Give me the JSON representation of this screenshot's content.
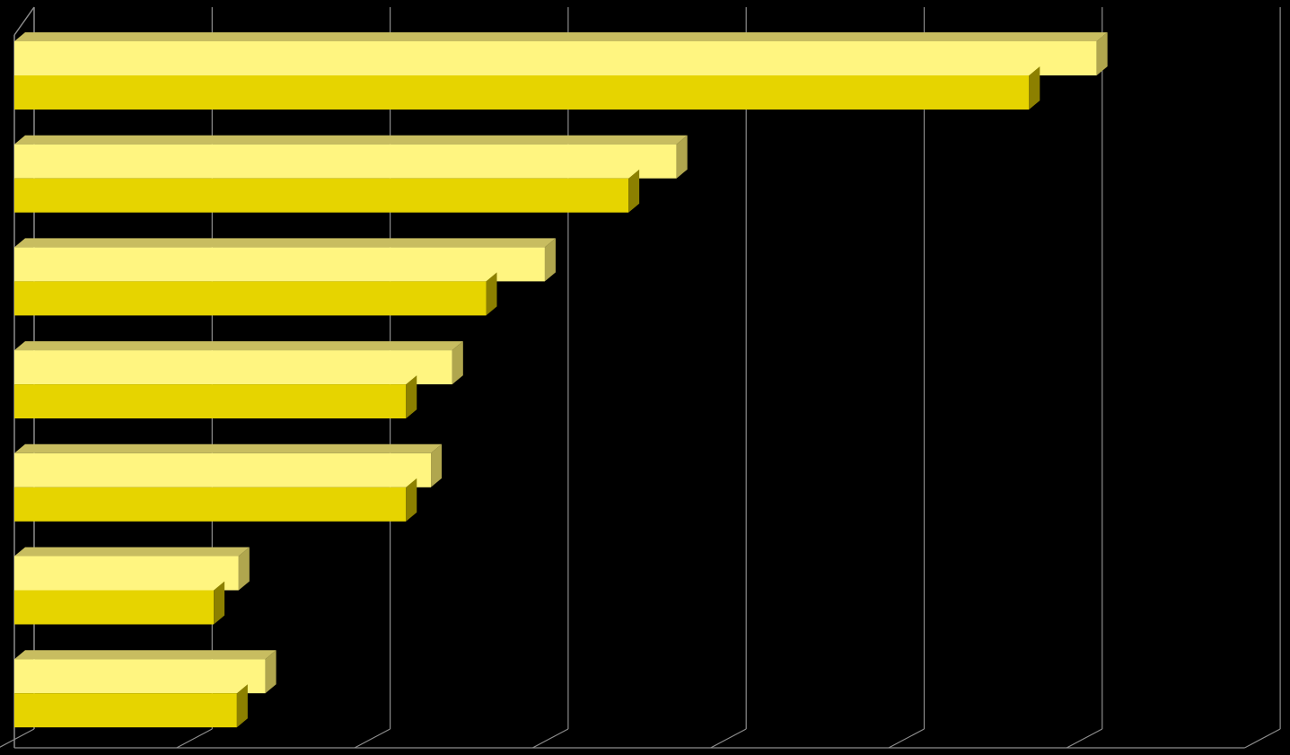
{
  "chart_data": {
    "type": "bar",
    "orientation": "horizontal",
    "style": "3d",
    "grid": true,
    "xlim": [
      0,
      7
    ],
    "categories": [
      "",
      "",
      "",
      "",
      "",
      "",
      ""
    ],
    "series": [
      {
        "values": [
          6.08,
          3.72,
          2.98,
          2.46,
          2.34,
          1.26,
          1.41
        ]
      },
      {
        "values": [
          5.7,
          3.45,
          2.65,
          2.2,
          2.2,
          1.12,
          1.25
        ]
      }
    ],
    "colors": {
      "background": "#000000",
      "grid": "#8c8c8c",
      "series_front": [
        "#fff580",
        "#e6d400"
      ],
      "series_top": [
        "#c8bd60",
        "#c8bd60"
      ],
      "series_side": [
        "#b0a64e",
        "#8c8000"
      ]
    }
  }
}
